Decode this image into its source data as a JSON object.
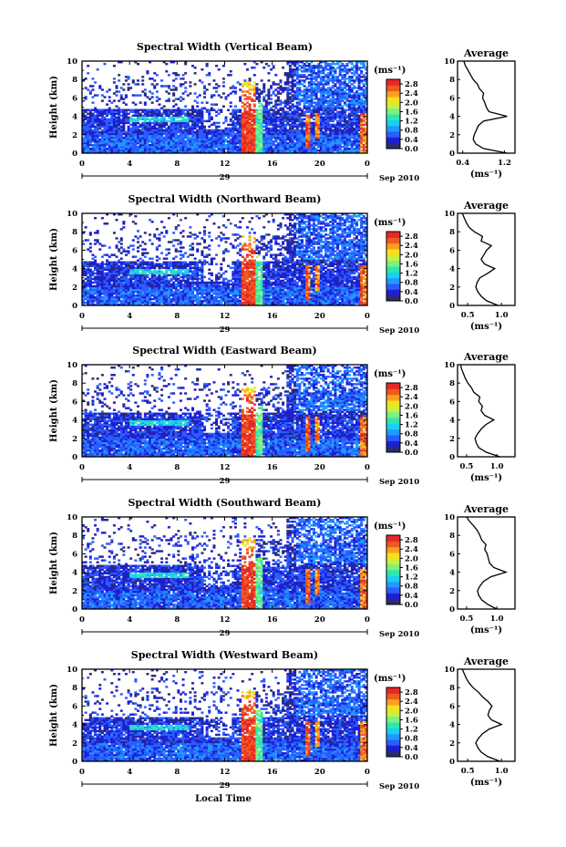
{
  "figure": {
    "xlabel": "Local Time",
    "date_label": "Sep 2010",
    "day_label": "29"
  },
  "colorbar": {
    "unit_label": "(ms⁻¹)",
    "ticks": [
      "2.8",
      "2.4",
      "2.0",
      "1.6",
      "1.2",
      "0.8",
      "0.4",
      "0.0"
    ],
    "colors": [
      "#2b2b6e",
      "#1f1fd0",
      "#2a5cff",
      "#1e9bff",
      "#19d0f0",
      "#30e6b0",
      "#7cf080",
      "#c8f040",
      "#f6e020",
      "#f8a020",
      "#f05a20",
      "#e62828"
    ]
  },
  "chart_data": [
    {
      "type": "heatmap",
      "title": "Spectral Width (Vertical Beam)",
      "ylabel": "Height (km)",
      "xlim": [
        0,
        24
      ],
      "ylim": [
        0,
        10
      ],
      "xticks": [
        "0",
        "4",
        "8",
        "12",
        "16",
        "20",
        "0"
      ],
      "yticks": [
        "10",
        "8",
        "6",
        "4",
        "2",
        "0"
      ],
      "average_profile": {
        "title": "Average",
        "xlabel": "(ms⁻¹)",
        "xticks": [
          "0.4",
          "1.2"
        ],
        "xlim": [
          0.3,
          1.4
        ],
        "yticks": [
          "10",
          "8",
          "6",
          "4",
          "2",
          "0"
        ],
        "heights": [
          0,
          0.5,
          1,
          1.5,
          2,
          2.5,
          3,
          3.5,
          4,
          4.5,
          5,
          5.5,
          6,
          6.5,
          7,
          7.5,
          8,
          8.5,
          9,
          9.5,
          10
        ],
        "values": [
          1.25,
          0.8,
          0.65,
          0.6,
          0.62,
          0.66,
          0.7,
          0.8,
          1.25,
          0.9,
          0.85,
          0.82,
          0.78,
          0.8,
          0.72,
          0.68,
          0.6,
          0.55,
          0.5,
          0.45,
          0.42
        ]
      }
    },
    {
      "type": "heatmap",
      "title": "Spectral Width (Northward Beam)",
      "ylabel": "Height (km)",
      "xlim": [
        0,
        24
      ],
      "ylim": [
        0,
        10
      ],
      "xticks": [
        "0",
        "4",
        "8",
        "12",
        "16",
        "20",
        "0"
      ],
      "yticks": [
        "10",
        "8",
        "6",
        "4",
        "2",
        "0"
      ],
      "average_profile": {
        "title": "Average",
        "xlabel": "(ms⁻¹)",
        "xticks": [
          "0.5",
          "1.0"
        ],
        "xlim": [
          0.35,
          1.2
        ],
        "yticks": [
          "10",
          "8",
          "6",
          "4",
          "2",
          "0"
        ],
        "heights": [
          0,
          0.5,
          1,
          1.5,
          2,
          2.5,
          3,
          3.5,
          4,
          4.5,
          5,
          5.5,
          6,
          6.5,
          7,
          7.5,
          8,
          8.5,
          9,
          9.5,
          10
        ],
        "values": [
          0.95,
          0.78,
          0.7,
          0.65,
          0.62,
          0.64,
          0.68,
          0.8,
          0.9,
          0.75,
          0.7,
          0.74,
          0.78,
          0.85,
          0.7,
          0.72,
          0.6,
          0.52,
          0.48,
          0.45,
          0.42
        ]
      }
    },
    {
      "type": "heatmap",
      "title": "Spectral Width (Eastward Beam)",
      "ylabel": "Height (km)",
      "xlim": [
        0,
        24
      ],
      "ylim": [
        0,
        10
      ],
      "xticks": [
        "0",
        "4",
        "8",
        "12",
        "16",
        "20",
        "0"
      ],
      "yticks": [
        "10",
        "8",
        "6",
        "4",
        "2",
        "0"
      ],
      "average_profile": {
        "title": "Average",
        "xlabel": "(ms⁻¹)",
        "xticks": [
          "0.5",
          "1.0"
        ],
        "xlim": [
          0.35,
          1.3
        ],
        "yticks": [
          "10",
          "8",
          "6",
          "4",
          "2",
          "0"
        ],
        "heights": [
          0,
          0.5,
          1,
          1.5,
          2,
          2.5,
          3,
          3.5,
          4,
          4.5,
          5,
          5.5,
          6,
          6.5,
          7,
          7.5,
          8,
          8.5,
          9,
          9.5,
          10
        ],
        "values": [
          1.05,
          0.82,
          0.7,
          0.66,
          0.64,
          0.68,
          0.74,
          0.82,
          0.95,
          0.8,
          0.74,
          0.76,
          0.7,
          0.72,
          0.62,
          0.58,
          0.52,
          0.48,
          0.45,
          0.42,
          0.4
        ]
      }
    },
    {
      "type": "heatmap",
      "title": "Spectral Width (Southward Beam)",
      "ylabel": "Height (km)",
      "xlim": [
        0,
        24
      ],
      "ylim": [
        0,
        10
      ],
      "xticks": [
        "0",
        "4",
        "8",
        "12",
        "16",
        "20",
        "0"
      ],
      "yticks": [
        "10",
        "8",
        "6",
        "4",
        "2",
        "0"
      ],
      "average_profile": {
        "title": "Average",
        "xlabel": "(ms⁻¹)",
        "xticks": [
          "0.5",
          "1.0"
        ],
        "xlim": [
          0.35,
          1.3
        ],
        "yticks": [
          "10",
          "8",
          "6",
          "4",
          "2",
          "0"
        ],
        "heights": [
          0,
          0.5,
          1,
          1.5,
          2,
          2.5,
          3,
          3.5,
          4,
          4.5,
          5,
          5.5,
          6,
          6.5,
          7,
          7.5,
          8,
          8.5,
          9,
          9.5,
          10
        ],
        "values": [
          1.0,
          0.85,
          0.75,
          0.7,
          0.68,
          0.72,
          0.78,
          0.9,
          1.15,
          0.95,
          0.88,
          0.86,
          0.84,
          0.8,
          0.82,
          0.75,
          0.72,
          0.68,
          0.62,
          0.55,
          0.5
        ]
      }
    },
    {
      "type": "heatmap",
      "title": "Spectral Width (Westward Beam)",
      "ylabel": "Height (km)",
      "xlim": [
        0,
        24
      ],
      "ylim": [
        0,
        10
      ],
      "xticks": [
        "0",
        "4",
        "8",
        "12",
        "16",
        "20",
        "0"
      ],
      "yticks": [
        "10",
        "8",
        "6",
        "4",
        "2",
        "0"
      ],
      "average_profile": {
        "title": "Average",
        "xlabel": "(ms⁻¹)",
        "xticks": [
          "0.5",
          "1.0"
        ],
        "xlim": [
          0.35,
          1.2
        ],
        "yticks": [
          "10",
          "8",
          "6",
          "4",
          "2",
          "0"
        ],
        "heights": [
          0,
          0.5,
          1,
          1.5,
          2,
          2.5,
          3,
          3.5,
          4,
          4.5,
          5,
          5.5,
          6,
          6.5,
          7,
          7.5,
          8,
          8.5,
          9,
          9.5,
          10
        ],
        "values": [
          0.98,
          0.8,
          0.7,
          0.65,
          0.62,
          0.66,
          0.72,
          0.82,
          1.0,
          0.85,
          0.8,
          0.82,
          0.86,
          0.8,
          0.72,
          0.66,
          0.58,
          0.52,
          0.48,
          0.45,
          0.42
        ]
      }
    }
  ]
}
